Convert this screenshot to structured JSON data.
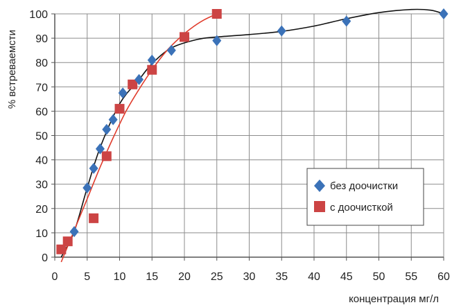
{
  "chart_data": {
    "type": "scatter",
    "title": "",
    "xlabel": "концентрация мг/л",
    "ylabel": "% встреваемсти",
    "xlim": [
      0,
      60
    ],
    "ylim": [
      0,
      100
    ],
    "xticks": [
      0,
      5,
      10,
      15,
      20,
      25,
      30,
      35,
      40,
      45,
      50,
      55,
      60
    ],
    "yticks": [
      0,
      10,
      20,
      30,
      40,
      50,
      60,
      70,
      80,
      90,
      100
    ],
    "grid": true,
    "legend_position": "bottom-right",
    "series": [
      {
        "name": "без доочистки",
        "marker": "diamond",
        "color": "#3b72b8",
        "trend_color": "#111111",
        "points": [
          [
            3,
            10.5
          ],
          [
            5,
            28.5
          ],
          [
            6,
            36.5
          ],
          [
            7,
            44.5
          ],
          [
            8,
            52.5
          ],
          [
            9,
            56.5
          ],
          [
            10.5,
            67.5
          ],
          [
            13,
            73
          ],
          [
            15,
            81
          ],
          [
            18,
            85
          ],
          [
            25,
            89
          ],
          [
            35,
            93
          ],
          [
            45,
            97
          ],
          [
            60,
            100
          ]
        ],
        "trend": [
          [
            1,
            0
          ],
          [
            3,
            10.5
          ],
          [
            5,
            28.5
          ],
          [
            7,
            45
          ],
          [
            10,
            63
          ],
          [
            13,
            73
          ],
          [
            15,
            79.5
          ],
          [
            18,
            86
          ],
          [
            22,
            89.5
          ],
          [
            25,
            90.5
          ],
          [
            30,
            91.5
          ],
          [
            35,
            92.8
          ],
          [
            40,
            95
          ],
          [
            45,
            98
          ],
          [
            50,
            100.5
          ],
          [
            55,
            101.8
          ],
          [
            58,
            101.5
          ],
          [
            60,
            100
          ]
        ]
      },
      {
        "name": "с доочисткой",
        "marker": "square",
        "color": "#cc4444",
        "trend_color": "#e03c2c",
        "points": [
          [
            1,
            3.2
          ],
          [
            2,
            6.5
          ],
          [
            6,
            16
          ],
          [
            8,
            41.5
          ],
          [
            10,
            61
          ],
          [
            12,
            71
          ],
          [
            15,
            77
          ],
          [
            20,
            90.5
          ],
          [
            25,
            100
          ]
        ],
        "trend": [
          [
            1,
            -2
          ],
          [
            3,
            11
          ],
          [
            5,
            24
          ],
          [
            7,
            37
          ],
          [
            9,
            49
          ],
          [
            11,
            60
          ],
          [
            13,
            69
          ],
          [
            15,
            77
          ],
          [
            17,
            84
          ],
          [
            19,
            89.5
          ],
          [
            21,
            94
          ],
          [
            23,
            97.5
          ],
          [
            25,
            100
          ]
        ]
      }
    ]
  }
}
